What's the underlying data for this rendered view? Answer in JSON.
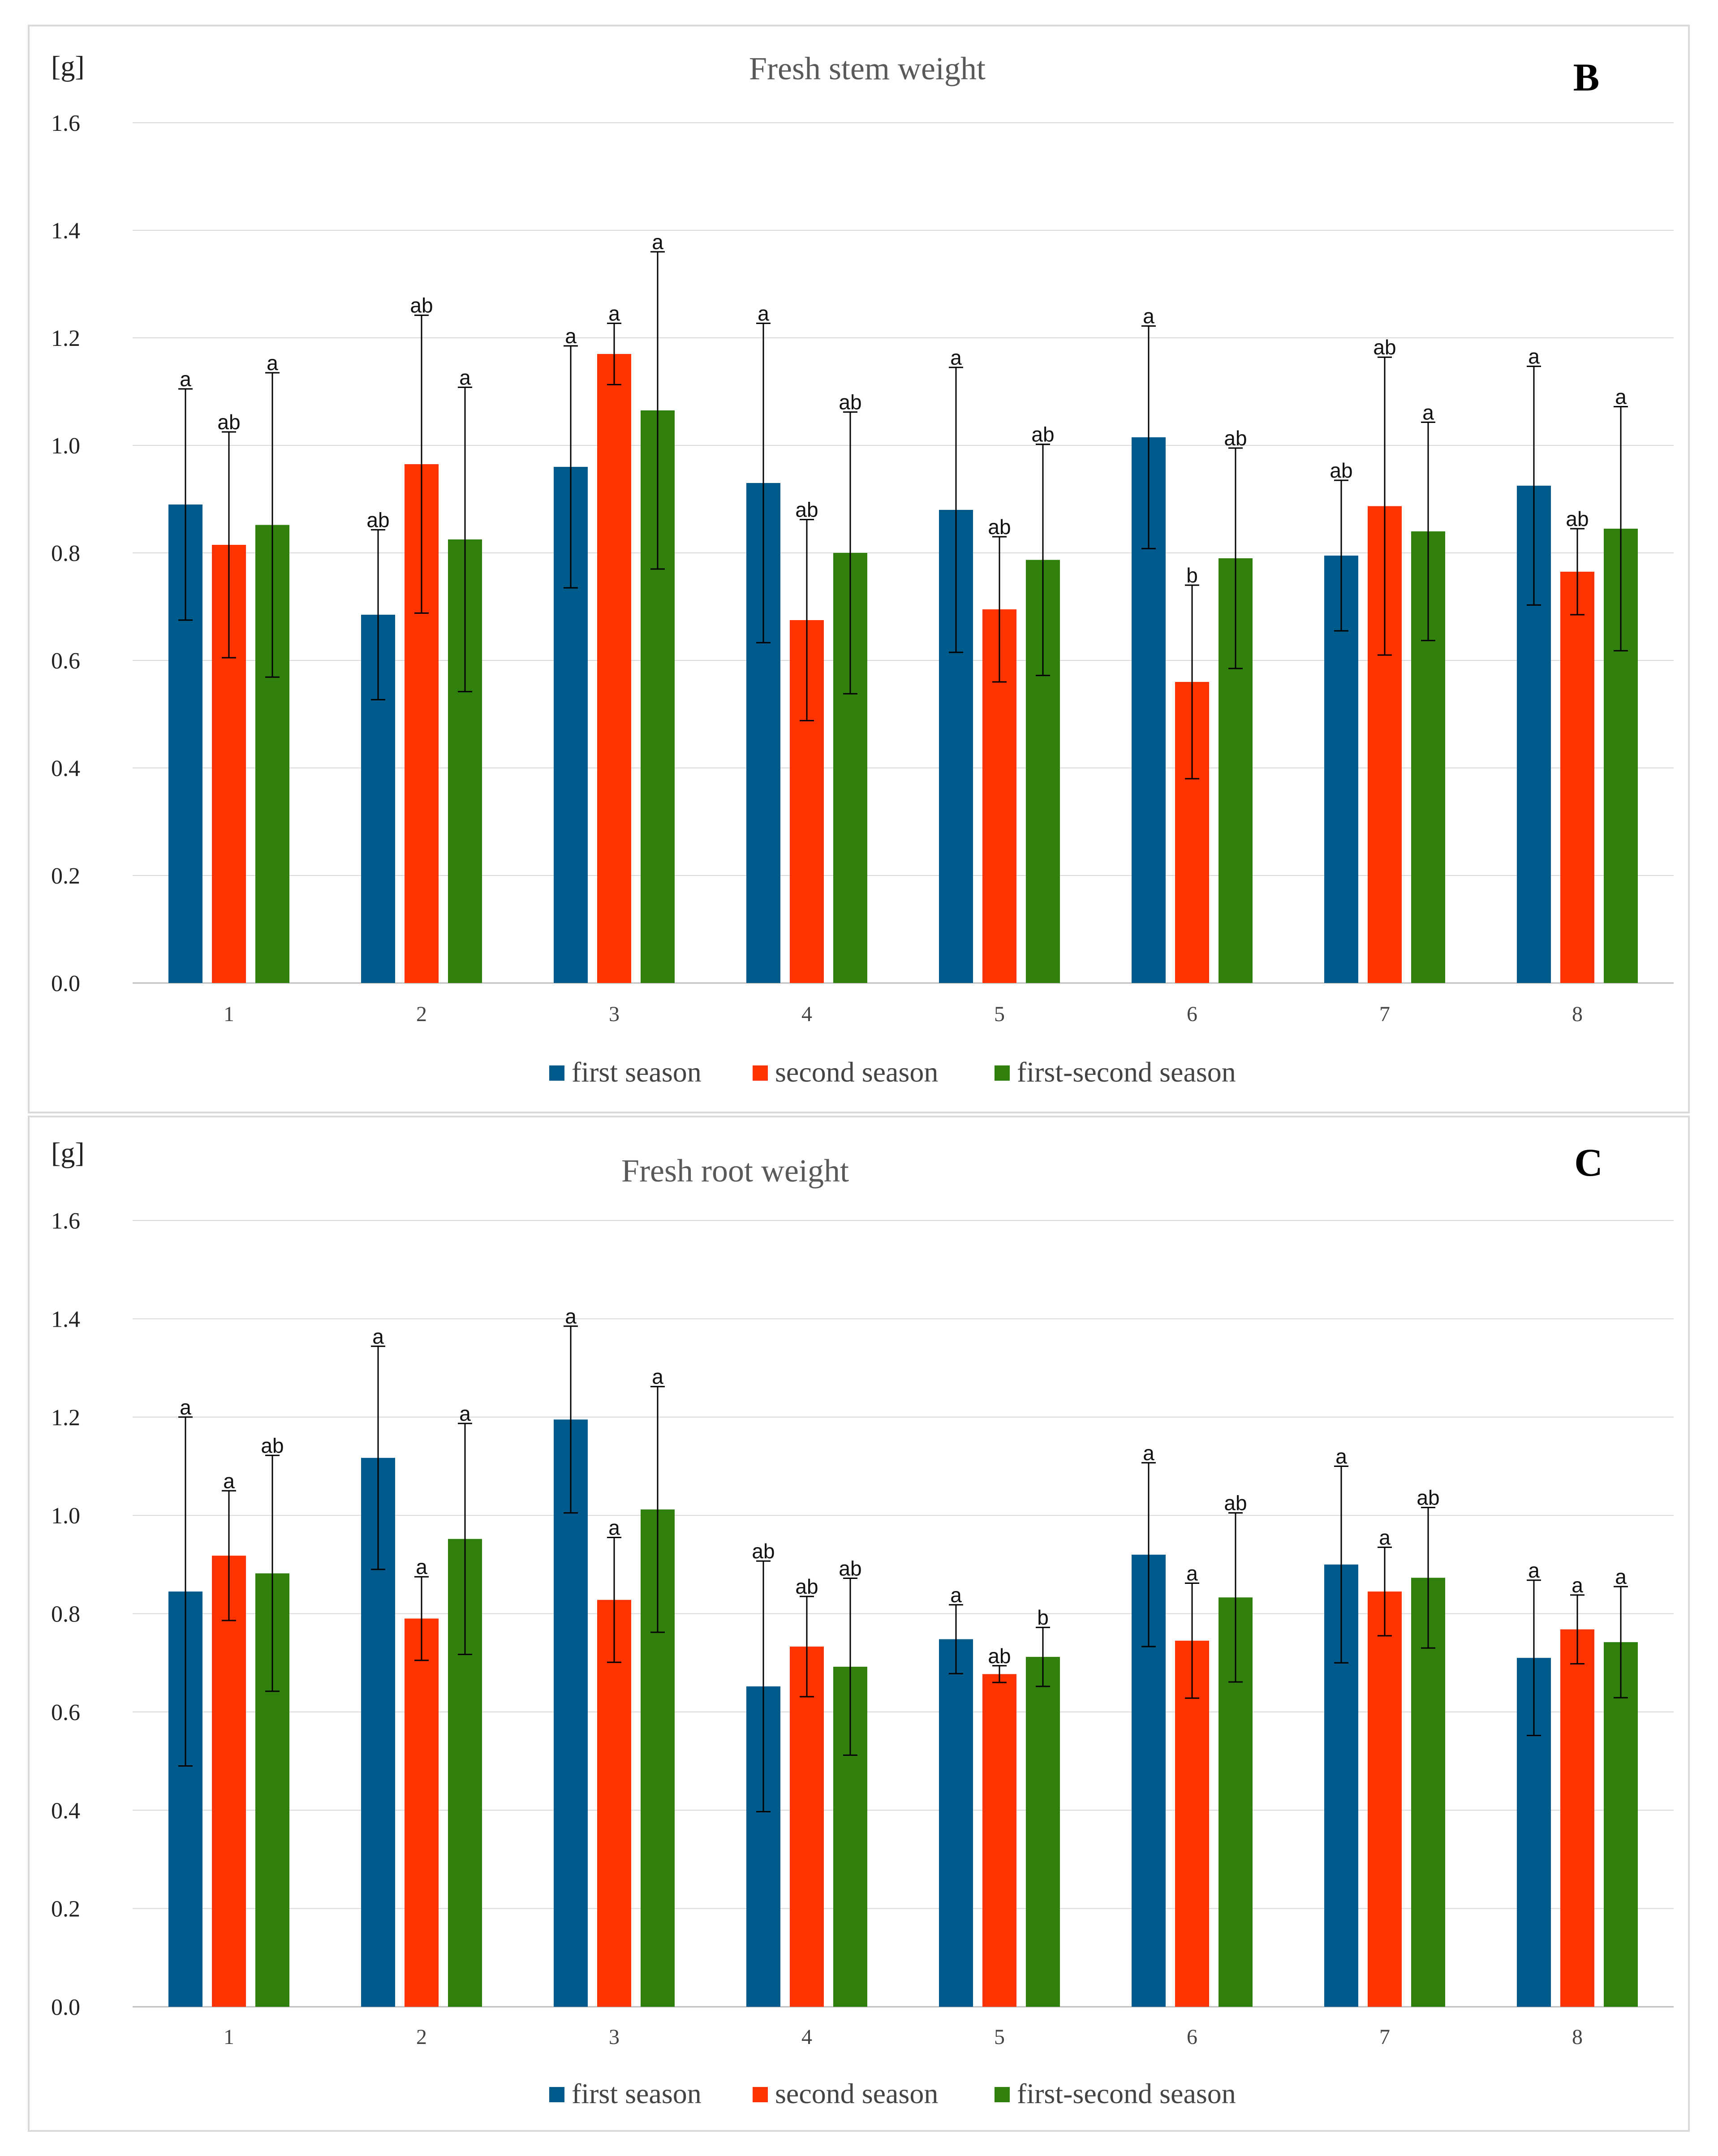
{
  "legend": {
    "first": "first season",
    "second": "second season",
    "firstsecond": "first-second season"
  },
  "colors": {
    "first": "#005a8c",
    "second": "#ff3300",
    "firstsecond": "#31800e"
  },
  "chart_data": [
    {
      "type": "bar",
      "panel_label": "B",
      "title": "Fresh stem weight",
      "unit_label": "[g]",
      "xlabel": "",
      "ylabel": "[g]",
      "ylim": [
        0,
        1.6
      ],
      "yticks": [
        "0.0",
        "0.2",
        "0.4",
        "0.6",
        "0.8",
        "1.0",
        "1.2",
        "1.4",
        "1.6"
      ],
      "grid": true,
      "legend_position": "bottom",
      "categories": [
        "1",
        "2",
        "3",
        "4",
        "5",
        "6",
        "7",
        "8"
      ],
      "series": [
        {
          "name": "first season",
          "values": [
            0.89,
            0.685,
            0.96,
            0.93,
            0.88,
            1.015,
            0.795,
            0.925
          ],
          "errors": [
            0.215,
            0.158,
            0.225,
            0.297,
            0.265,
            0.207,
            0.14,
            0.222
          ],
          "letters": [
            "a",
            "ab",
            "a",
            "a",
            "a",
            "a",
            "ab",
            "a"
          ]
        },
        {
          "name": "second season",
          "values": [
            0.815,
            0.965,
            1.17,
            0.675,
            0.695,
            0.56,
            0.887,
            0.765
          ],
          "errors": [
            0.21,
            0.277,
            0.057,
            0.187,
            0.135,
            0.18,
            0.277,
            0.08
          ],
          "letters": [
            "ab",
            "ab",
            "a",
            "ab",
            "ab",
            "b",
            "ab",
            "ab"
          ]
        },
        {
          "name": "first-second season",
          "values": [
            0.852,
            0.825,
            1.065,
            0.8,
            0.787,
            0.79,
            0.84,
            0.845
          ],
          "errors": [
            0.283,
            0.283,
            0.295,
            0.262,
            0.215,
            0.205,
            0.203,
            0.227
          ],
          "letters": [
            "a",
            "a",
            "a",
            "ab",
            "ab",
            "ab",
            "a",
            "a"
          ]
        }
      ]
    },
    {
      "type": "bar",
      "panel_label": "C",
      "title": "Fresh root weight",
      "unit_label": "[g]",
      "xlabel": "",
      "ylabel": "[g]",
      "ylim": [
        0,
        1.6
      ],
      "yticks": [
        "0.0",
        "0.2",
        "0.4",
        "0.6",
        "0.8",
        "1.0",
        "1.2",
        "1.4",
        "1.6"
      ],
      "grid": true,
      "legend_position": "bottom",
      "categories": [
        "1",
        "2",
        "3",
        "4",
        "5",
        "6",
        "7",
        "8"
      ],
      "series": [
        {
          "name": "first season",
          "values": [
            0.845,
            1.117,
            1.195,
            0.652,
            0.748,
            0.92,
            0.9,
            0.71
          ],
          "errors": [
            0.355,
            0.227,
            0.19,
            0.255,
            0.07,
            0.187,
            0.2,
            0.158
          ],
          "letters": [
            "a",
            "a",
            "a",
            "ab",
            "a",
            "a",
            "a",
            "a"
          ]
        },
        {
          "name": "second season",
          "values": [
            0.918,
            0.79,
            0.828,
            0.733,
            0.677,
            0.745,
            0.845,
            0.768
          ],
          "errors": [
            0.132,
            0.085,
            0.127,
            0.102,
            0.017,
            0.117,
            0.09,
            0.07
          ],
          "letters": [
            "a",
            "a",
            "a",
            "ab",
            "ab",
            "a",
            "a",
            "a"
          ]
        },
        {
          "name": "first-second season",
          "values": [
            0.882,
            0.952,
            1.012,
            0.692,
            0.712,
            0.833,
            0.873,
            0.742
          ],
          "errors": [
            0.24,
            0.235,
            0.25,
            0.18,
            0.06,
            0.172,
            0.143,
            0.113
          ],
          "letters": [
            "ab",
            "a",
            "a",
            "ab",
            "b",
            "ab",
            "ab",
            "a"
          ]
        }
      ]
    }
  ]
}
